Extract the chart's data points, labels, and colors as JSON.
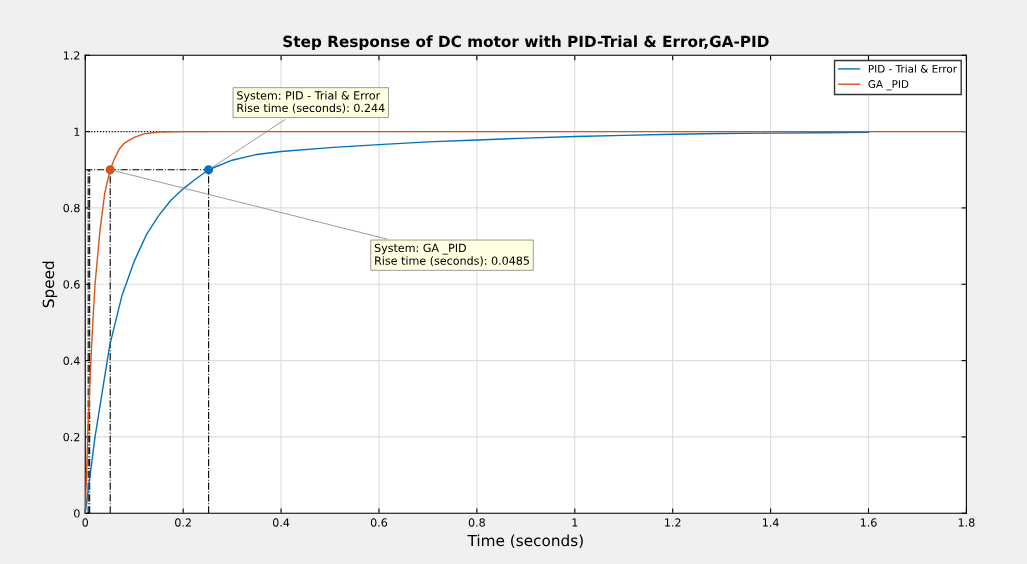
{
  "chart_data": {
    "type": "line",
    "title": "Step Response of DC motor with PID-Trial & Error,GA-PID",
    "xlabel": "Time (seconds)",
    "ylabel": "Speed",
    "series": [
      {
        "name": "PID - Trial & Error",
        "color": "#0072bd",
        "x": [
          0,
          0.01,
          0.02,
          0.03,
          0.05,
          0.075,
          0.1,
          0.125,
          0.15,
          0.175,
          0.2,
          0.225,
          0.252,
          0.3,
          0.35,
          0.4,
          0.5,
          0.6,
          0.7,
          0.8,
          0.9,
          1.0,
          1.1,
          1.2,
          1.3,
          1.4,
          1.5,
          1.6
        ],
        "values": [
          0,
          0.1,
          0.2,
          0.28,
          0.44,
          0.57,
          0.66,
          0.73,
          0.78,
          0.82,
          0.85,
          0.875,
          0.9,
          0.925,
          0.94,
          0.948,
          0.958,
          0.966,
          0.973,
          0.978,
          0.983,
          0.987,
          0.99,
          0.993,
          0.995,
          0.996,
          0.997,
          0.998
        ]
      },
      {
        "name": "GA _PID",
        "color": "#d95319",
        "x": [
          0,
          0.005,
          0.01,
          0.015,
          0.02,
          0.03,
          0.04,
          0.051,
          0.06,
          0.07,
          0.08,
          0.1,
          0.12,
          0.15,
          0.2,
          0.5,
          1.0,
          1.8
        ],
        "values": [
          0,
          0.2,
          0.36,
          0.49,
          0.6,
          0.74,
          0.84,
          0.9,
          0.93,
          0.955,
          0.97,
          0.985,
          0.994,
          0.999,
          1.0,
          1.0,
          1.0,
          1.0
        ]
      },
      {
        "type": "scatter",
        "color": "#0072bd",
        "x": [
          0.252
        ],
        "values": [
          0.9
        ]
      },
      {
        "type": "scatter",
        "color": "#d95319",
        "x": [
          0.051
        ],
        "values": [
          0.9
        ]
      }
    ],
    "xlim": [
      0,
      1.8
    ],
    "ylim": [
      0,
      1.2
    ],
    "xticks": [
      0,
      0.2,
      0.4,
      0.6,
      0.8,
      1,
      1.2,
      1.4,
      1.6,
      1.8
    ],
    "yticks": [
      0,
      0.2,
      0.4,
      0.6,
      0.8,
      1,
      1.2
    ],
    "ref_lines": [
      {
        "axis": "y",
        "value": 1,
        "label": null,
        "color": "#000000",
        "line_style": "dotted"
      },
      {
        "axis": "y",
        "value": 0.9,
        "label": null,
        "color": "#000000",
        "line_style": "dashed"
      },
      {
        "axis": "x",
        "value": 0.006,
        "label": null,
        "color": "#000000",
        "line_style": "dashed"
      },
      {
        "axis": "x",
        "value": 0.009,
        "label": null,
        "color": "#000000",
        "line_style": "dashed"
      },
      {
        "axis": "x",
        "value": 0.051,
        "label": null,
        "color": "#000000",
        "line_style": "dashed"
      },
      {
        "axis": "x",
        "value": 0.252,
        "label": null,
        "color": "#000000",
        "line_style": "dashed"
      }
    ],
    "annotations": [
      {
        "text": "System: PID - Trial & Error\nRise time (seconds): 0.244",
        "x": 0.252,
        "y": 0.9
      },
      {
        "text": "System: GA _PID\nRise time (seconds): 0.0485",
        "x": 0.051,
        "y": 0.9
      }
    ],
    "grid": true,
    "legend": "top right",
    "line_style": "solid",
    "marker": "none"
  }
}
